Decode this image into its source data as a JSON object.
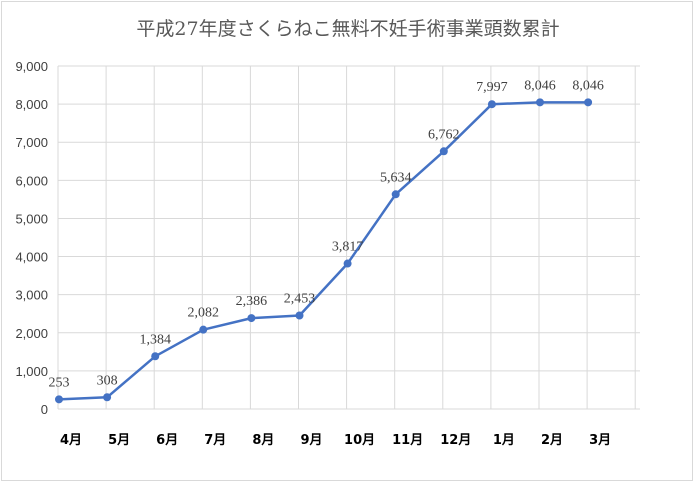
{
  "chart_data": {
    "type": "line",
    "title": "平成27年度さくらねこ無料不妊手術事業頭数累計",
    "categories": [
      "4月",
      "5月",
      "6月",
      "7月",
      "8月",
      "9月",
      "10月",
      "11月",
      "12月",
      "1月",
      "2月",
      "3月"
    ],
    "series": [
      {
        "values": [
          253,
          308,
          1384,
          2082,
          2386,
          2453,
          3817,
          5634,
          6762,
          7997,
          8046,
          8046
        ],
        "labels": [
          "253",
          "308",
          "1,384",
          "2,082",
          "2,386",
          "2,453",
          "3,817",
          "5,634",
          "6,762",
          "7,997",
          "8,046",
          "8,046"
        ]
      }
    ],
    "yticks": [
      "0",
      "1,000",
      "2,000",
      "3,000",
      "4,000",
      "5,000",
      "6,000",
      "7,000",
      "8,000",
      "9,000"
    ],
    "ylim": [
      0,
      9000
    ],
    "grid": true,
    "legend": "none",
    "line_color": "#4472c4"
  }
}
